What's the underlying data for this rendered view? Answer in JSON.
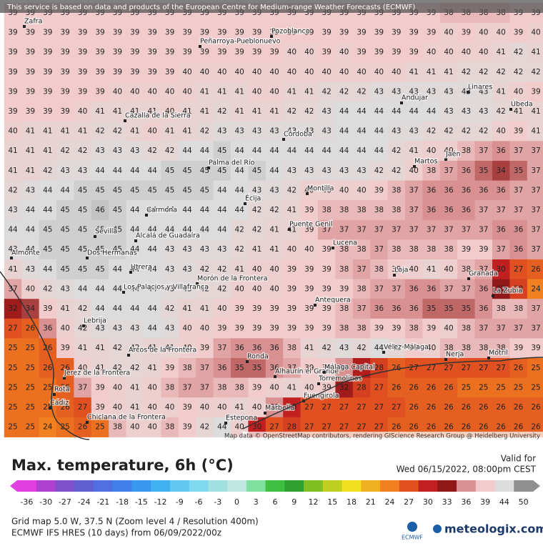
{
  "header": {
    "attribution": "This service is based on data and products of the European Centre for Medium-range Weather Forecasts (ECMWF)",
    "map_credit": "Map data © OpenStreetMap contributors, rendering GIScience Research Group @ Heidelberg University"
  },
  "grid": [
    [
      39,
      39,
      39,
      39,
      39,
      39,
      39,
      39,
      39,
      39,
      39,
      39,
      39,
      39,
      39,
      39,
      39,
      39,
      39,
      39,
      39,
      39,
      39,
      39,
      39,
      38,
      38,
      38,
      38,
      39,
      39
    ],
    [
      39,
      39,
      39,
      39,
      39,
      39,
      39,
      39,
      39,
      39,
      39,
      39,
      39,
      39,
      39,
      39,
      39,
      39,
      39,
      39,
      39,
      39,
      39,
      39,
      39,
      40,
      39,
      40,
      40,
      39,
      40
    ],
    [
      39,
      39,
      39,
      39,
      39,
      39,
      39,
      39,
      39,
      39,
      39,
      39,
      39,
      39,
      39,
      39,
      40,
      40,
      39,
      40,
      39,
      39,
      39,
      39,
      40,
      40,
      40,
      40,
      41,
      42,
      41
    ],
    [
      39,
      39,
      39,
      39,
      39,
      39,
      39,
      39,
      39,
      39,
      40,
      40,
      40,
      40,
      40,
      40,
      40,
      40,
      40,
      40,
      40,
      40,
      40,
      41,
      41,
      41,
      42,
      42,
      42,
      42,
      42
    ],
    [
      39,
      39,
      39,
      39,
      39,
      39,
      40,
      40,
      40,
      40,
      40,
      41,
      41,
      41,
      40,
      40,
      41,
      41,
      42,
      42,
      42,
      43,
      43,
      43,
      43,
      43,
      43,
      43,
      41,
      40,
      39
    ],
    [
      39,
      39,
      39,
      39,
      40,
      41,
      41,
      41,
      41,
      40,
      41,
      41,
      42,
      41,
      41,
      41,
      42,
      42,
      43,
      44,
      44,
      44,
      44,
      44,
      44,
      43,
      43,
      43,
      42,
      41,
      41
    ],
    [
      40,
      41,
      41,
      41,
      41,
      42,
      42,
      41,
      40,
      41,
      41,
      42,
      43,
      43,
      43,
      43,
      43,
      43,
      43,
      44,
      44,
      44,
      43,
      43,
      42,
      42,
      42,
      42,
      40,
      39,
      41
    ],
    [
      41,
      41,
      41,
      42,
      42,
      43,
      43,
      43,
      42,
      42,
      44,
      44,
      45,
      44,
      44,
      44,
      44,
      44,
      44,
      44,
      44,
      44,
      42,
      41,
      40,
      40,
      38,
      37,
      36,
      37,
      37
    ],
    [
      41,
      41,
      42,
      43,
      43,
      44,
      44,
      44,
      44,
      45,
      45,
      45,
      45,
      44,
      45,
      44,
      43,
      43,
      43,
      43,
      43,
      42,
      42,
      40,
      38,
      37,
      36,
      35,
      34,
      35,
      37
    ],
    [
      42,
      43,
      44,
      44,
      45,
      45,
      45,
      45,
      45,
      45,
      45,
      45,
      44,
      44,
      43,
      43,
      42,
      40,
      40,
      40,
      40,
      39,
      38,
      37,
      36,
      36,
      36,
      36,
      36,
      37,
      37
    ],
    [
      43,
      44,
      44,
      45,
      45,
      46,
      45,
      44,
      44,
      44,
      44,
      44,
      44,
      44,
      42,
      42,
      41,
      39,
      38,
      38,
      38,
      38,
      38,
      37,
      36,
      36,
      36,
      37,
      37,
      37,
      37
    ],
    [
      44,
      44,
      45,
      45,
      45,
      45,
      45,
      44,
      44,
      44,
      44,
      44,
      44,
      42,
      42,
      41,
      41,
      39,
      37,
      37,
      37,
      37,
      37,
      37,
      37,
      37,
      37,
      37,
      36,
      36,
      37
    ],
    [
      43,
      44,
      45,
      45,
      45,
      45,
      45,
      44,
      44,
      43,
      43,
      43,
      43,
      42,
      41,
      41,
      40,
      40,
      39,
      38,
      38,
      37,
      38,
      38,
      38,
      38,
      39,
      39,
      37,
      36,
      37
    ],
    [
      41,
      43,
      44,
      45,
      45,
      45,
      44,
      44,
      44,
      43,
      43,
      42,
      42,
      41,
      40,
      40,
      39,
      39,
      39,
      38,
      37,
      38,
      39,
      40,
      41,
      40,
      38,
      37,
      30,
      27,
      26
    ],
    [
      37,
      40,
      42,
      43,
      44,
      44,
      44,
      44,
      44,
      43,
      43,
      42,
      42,
      40,
      40,
      40,
      39,
      39,
      39,
      39,
      38,
      37,
      37,
      36,
      36,
      37,
      37,
      36,
      33,
      28,
      24
    ],
    [
      32,
      34,
      39,
      41,
      42,
      44,
      44,
      44,
      44,
      42,
      41,
      41,
      40,
      39,
      39,
      39,
      39,
      39,
      39,
      38,
      37,
      36,
      36,
      36,
      35,
      35,
      35,
      36,
      38,
      38,
      37
    ],
    [
      27,
      26,
      36,
      40,
      42,
      43,
      43,
      43,
      44,
      43,
      40,
      40,
      39,
      39,
      39,
      39,
      39,
      39,
      39,
      38,
      38,
      39,
      39,
      38,
      39,
      40,
      38,
      37,
      37,
      37,
      37
    ],
    [
      25,
      25,
      26,
      39,
      41,
      41,
      42,
      42,
      41,
      41,
      40,
      39,
      37,
      36,
      36,
      36,
      38,
      41,
      42,
      43,
      42,
      44,
      42,
      39,
      40,
      38,
      38,
      38,
      38,
      39,
      39
    ],
    [
      25,
      25,
      26,
      26,
      40,
      41,
      42,
      42,
      41,
      39,
      38,
      37,
      36,
      35,
      35,
      36,
      37,
      39,
      39,
      36,
      31,
      28,
      26,
      27,
      27,
      27,
      27,
      27,
      27,
      26,
      25
    ],
    [
      25,
      25,
      25,
      26,
      37,
      39,
      40,
      41,
      40,
      38,
      37,
      37,
      38,
      38,
      39,
      40,
      41,
      40,
      39,
      32,
      28,
      27,
      26,
      26,
      26,
      26,
      25,
      25,
      25,
      25,
      25
    ],
    [
      25,
      25,
      25,
      26,
      27,
      39,
      40,
      41,
      40,
      40,
      39,
      40,
      40,
      41,
      40,
      36,
      30,
      27,
      27,
      27,
      27,
      27,
      27,
      26,
      26,
      26,
      26,
      26,
      26,
      26,
      26
    ],
    [
      25,
      25,
      24,
      25,
      26,
      25,
      38,
      40,
      40,
      38,
      39,
      42,
      44,
      40,
      30,
      27,
      28,
      27,
      27,
      27,
      27,
      27,
      26,
      26,
      26,
      26,
      26,
      26,
      26,
      26,
      26
    ]
  ],
  "places": [
    "Zafra",
    "Peñarroya-Pueblonuevo",
    "Pozoblanco",
    "Linares",
    "Andújar",
    "Úbeda",
    "Cazalla de la Sierra",
    "Córdoba",
    "Palma del Río",
    "Jaén",
    "Martos",
    "Écija",
    "Montilla",
    "Carmona",
    "Puente Genil",
    "Lucena",
    "Sevilla",
    "Alcalá de Guadaíra",
    "Almonte",
    "Dos Hermanas",
    "Utrera",
    "Morón de la Frontera",
    "Los Palacios y Villafranca",
    "Loja",
    "Granada",
    "La Zubia",
    "Antequera",
    "Lebrija",
    "Arcos de la Frontera",
    "Ronda",
    "Vélez-Málaga",
    "Nerja",
    "Motril",
    "Jerez de la Frontera",
    "Alhaurín el Grande",
    "Málaga Capital",
    "Torremolinos",
    "Rota",
    "Fuengirola",
    "Cádiz",
    "Chiclana de la Frontera",
    "Marbella",
    "Estepona"
  ],
  "footer": {
    "title": "Max. temperature, 6h (°C)",
    "valid_label": "Valid for",
    "valid_time": "Wed 06/15/2022, 08:00pm CEST",
    "colorbar": {
      "ticks": [
        -36,
        -30,
        -27,
        -24,
        -21,
        -18,
        -15,
        -12,
        -9,
        -6,
        -3,
        0,
        3,
        6,
        9,
        12,
        15,
        18,
        21,
        24,
        27,
        30,
        33,
        36,
        39,
        44,
        50
      ],
      "colors": [
        "#e040e0",
        "#b040d0",
        "#8050c8",
        "#6060d0",
        "#5070e0",
        "#4080e8",
        "#3898f0",
        "#40b0f0",
        "#60c8f0",
        "#80d8f0",
        "#a0e0e0",
        "#c0e8e0",
        "#80e0a0",
        "#40c040",
        "#30a030",
        "#80c020",
        "#c0d020",
        "#f0e020",
        "#f0b020",
        "#f08020",
        "#e05020",
        "#c02020",
        "#901818",
        "#d89090",
        "#f2cccc",
        "#dcdcdc",
        "#909090"
      ]
    },
    "grid_info": "Grid map 5.0 W, 37.5 N (Zoom level 4 / Resolution 400m)",
    "model_info": "ECMWF IFS HRES (10 days) from 06/09/2022/00z",
    "ecmwf": "ECMWF",
    "brand": "meteologix.com"
  }
}
